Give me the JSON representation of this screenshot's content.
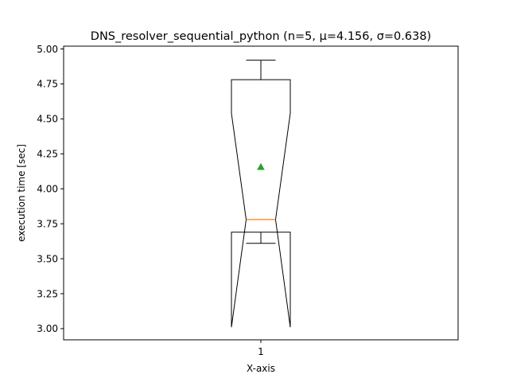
{
  "chart_data": {
    "type": "box",
    "title": "DNS_resolver_sequential_python (n=5, μ=4.156, σ=0.638)",
    "xlabel": "X-axis",
    "ylabel": "execution time [sec]",
    "categories": [
      "1"
    ],
    "ylim": [
      2.92,
      5.02
    ],
    "yticks": [
      3.0,
      3.25,
      3.5,
      3.75,
      4.0,
      4.25,
      4.5,
      4.75,
      5.0
    ],
    "ytick_labels": [
      "3.00",
      "3.25",
      "3.50",
      "3.75",
      "4.00",
      "4.25",
      "4.50",
      "4.75",
      "5.00"
    ],
    "notched": true,
    "showmeans": true,
    "grid": false,
    "boxes": [
      {
        "category": "1",
        "whisker_low": 3.61,
        "q1": 3.69,
        "median": 3.78,
        "q3": 4.78,
        "whisker_high": 4.92,
        "notch_low": 3.01,
        "notch_high": 4.54,
        "mean": 4.156
      }
    ],
    "colors": {
      "box": "#000000",
      "median": "#ff7f0e",
      "mean": "#2ca02c"
    }
  }
}
